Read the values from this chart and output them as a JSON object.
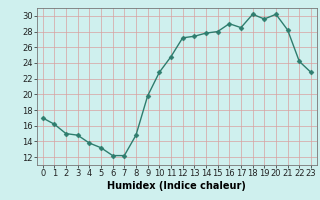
{
  "x": [
    0,
    1,
    2,
    3,
    4,
    5,
    6,
    7,
    8,
    9,
    10,
    11,
    12,
    13,
    14,
    15,
    16,
    17,
    18,
    19,
    20,
    21,
    22,
    23
  ],
  "y": [
    17.0,
    16.2,
    15.0,
    14.8,
    13.8,
    13.2,
    12.2,
    12.2,
    14.8,
    19.8,
    22.8,
    24.8,
    27.2,
    27.4,
    27.8,
    28.0,
    29.0,
    28.5,
    30.2,
    29.6,
    30.2,
    28.2,
    24.2,
    22.8
  ],
  "xlim": [
    -0.5,
    23.5
  ],
  "ylim": [
    11,
    31
  ],
  "yticks": [
    12,
    14,
    16,
    18,
    20,
    22,
    24,
    26,
    28,
    30
  ],
  "xticks": [
    0,
    1,
    2,
    3,
    4,
    5,
    6,
    7,
    8,
    9,
    10,
    11,
    12,
    13,
    14,
    15,
    16,
    17,
    18,
    19,
    20,
    21,
    22,
    23
  ],
  "xlabel": "Humidex (Indice chaleur)",
  "line_color": "#2e7d6e",
  "marker_color": "#2e7d6e",
  "bg_color": "#cff0ee",
  "grid_color": "#c0dedd",
  "xlabel_fontsize": 7.0,
  "tick_fontsize": 6.0,
  "line_width": 1.0,
  "marker_size": 2.5
}
